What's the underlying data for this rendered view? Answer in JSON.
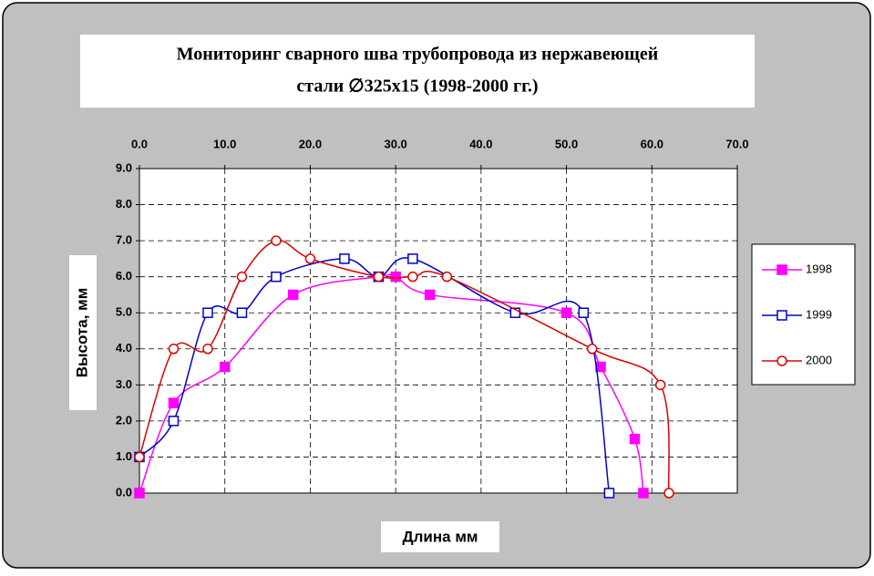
{
  "chart_data": {
    "type": "line",
    "title": [
      "Мониторинг сварного шва трубопровода из нержавеющей",
      "стали ∅325x15  (1998-2000 гг.)"
    ],
    "x_label": "Длина мм",
    "y_label": "Высота, мм",
    "xlim": [
      0,
      70
    ],
    "ylim": [
      0,
      9
    ],
    "xticks": [
      {
        "value": 0,
        "label": "0.0"
      },
      {
        "value": 10,
        "label": "10.0"
      },
      {
        "value": 20,
        "label": "20.0"
      },
      {
        "value": 30,
        "label": "30.0"
      },
      {
        "value": 40,
        "label": "40.0"
      },
      {
        "value": 50,
        "label": "50.0"
      },
      {
        "value": 60,
        "label": "60.0"
      },
      {
        "value": 70,
        "label": "70.0"
      }
    ],
    "yticks": [
      {
        "value": 0,
        "label": "0.0"
      },
      {
        "value": 1,
        "label": "1.0"
      },
      {
        "value": 2,
        "label": "2.0"
      },
      {
        "value": 3,
        "label": "3.0"
      },
      {
        "value": 4,
        "label": "4.0"
      },
      {
        "value": 5,
        "label": "5.0"
      },
      {
        "value": 6,
        "label": "6.0"
      },
      {
        "value": 7,
        "label": "7.0"
      },
      {
        "value": 8,
        "label": "8.0"
      },
      {
        "value": 9,
        "label": "9.0"
      }
    ],
    "grid": true,
    "smooth": true,
    "legend": "right",
    "series": [
      {
        "name": "1998",
        "color": "#ff00ff",
        "marker": "square",
        "filled": true,
        "x": [
          0,
          4,
          10,
          18,
          28,
          30,
          34,
          50,
          54,
          58,
          59
        ],
        "values": [
          0,
          2.5,
          3.5,
          5.5,
          6,
          6,
          5.5,
          5,
          3.5,
          1.5,
          0
        ]
      },
      {
        "name": "1999",
        "color": "#0000cc",
        "marker": "square",
        "filled": false,
        "x": [
          0,
          4,
          8,
          12,
          16,
          24,
          28,
          32,
          44,
          52,
          55
        ],
        "values": [
          1,
          2,
          5,
          5,
          6,
          6.5,
          6,
          6.5,
          5,
          5,
          0
        ]
      },
      {
        "name": "2000",
        "color": "#dd0000",
        "marker": "circle",
        "filled": false,
        "x": [
          0,
          4,
          8,
          12,
          16,
          20,
          28,
          32,
          36,
          53,
          61,
          62
        ],
        "values": [
          1,
          4,
          4,
          6,
          7,
          6.5,
          6,
          6,
          6,
          4,
          3,
          0
        ]
      }
    ]
  }
}
